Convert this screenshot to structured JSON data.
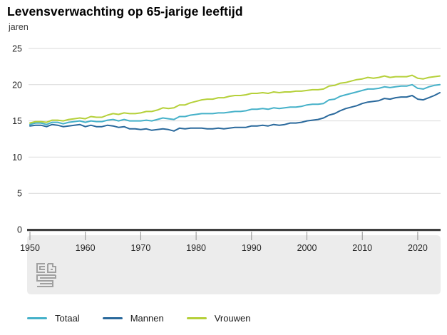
{
  "header": {
    "title": "Levensverwachting op 65-jarige leeftijd",
    "unit_label": "jaren"
  },
  "chart_data": {
    "type": "line",
    "title": "Levensverwachting op 65-jarige leeftijd",
    "ylabel": "jaren",
    "xlabel": "",
    "ylim": [
      0,
      25
    ],
    "y_ticks": [
      0,
      5,
      10,
      15,
      20,
      25
    ],
    "x_ticks": [
      1950,
      1960,
      1970,
      1980,
      1990,
      2000,
      2010,
      2020
    ],
    "x_range": [
      1950,
      2024
    ],
    "grid": "horizontal",
    "legend_position": "bottom",
    "axis_color": "#3f3f3f",
    "gridline_color": "#d9d9d9",
    "band_color": "#ececec",
    "years": [
      1950,
      1951,
      1952,
      1953,
      1954,
      1955,
      1956,
      1957,
      1958,
      1959,
      1960,
      1961,
      1962,
      1963,
      1964,
      1965,
      1966,
      1967,
      1968,
      1969,
      1970,
      1971,
      1972,
      1973,
      1974,
      1975,
      1976,
      1977,
      1978,
      1979,
      1980,
      1981,
      1982,
      1983,
      1984,
      1985,
      1986,
      1987,
      1988,
      1989,
      1990,
      1991,
      1992,
      1993,
      1994,
      1995,
      1996,
      1997,
      1998,
      1999,
      2000,
      2001,
      2002,
      2003,
      2004,
      2005,
      2006,
      2007,
      2008,
      2009,
      2010,
      2011,
      2012,
      2013,
      2014,
      2015,
      2016,
      2017,
      2018,
      2019,
      2020,
      2021,
      2022,
      2023,
      2024
    ],
    "series": [
      {
        "name": "Totaal",
        "color": "#45b1c9",
        "values": [
          14.5,
          14.7,
          14.7,
          14.5,
          14.8,
          14.8,
          14.6,
          14.8,
          14.9,
          15.0,
          14.8,
          15.0,
          14.9,
          14.9,
          15.1,
          15.2,
          15.0,
          15.2,
          15.0,
          15.0,
          15.0,
          15.1,
          15.0,
          15.2,
          15.4,
          15.3,
          15.2,
          15.6,
          15.6,
          15.8,
          15.9,
          16.0,
          16.0,
          16.0,
          16.1,
          16.1,
          16.2,
          16.3,
          16.3,
          16.4,
          16.6,
          16.6,
          16.7,
          16.6,
          16.8,
          16.7,
          16.8,
          16.9,
          16.9,
          17.0,
          17.2,
          17.3,
          17.3,
          17.4,
          17.9,
          18.0,
          18.4,
          18.6,
          18.8,
          19.0,
          19.2,
          19.4,
          19.4,
          19.5,
          19.7,
          19.6,
          19.7,
          19.8,
          19.8,
          20.0,
          19.5,
          19.4,
          19.7,
          19.9,
          20.0
        ]
      },
      {
        "name": "Mannen",
        "color": "#2a699c",
        "values": [
          14.3,
          14.4,
          14.4,
          14.2,
          14.5,
          14.4,
          14.2,
          14.3,
          14.4,
          14.5,
          14.2,
          14.4,
          14.2,
          14.2,
          14.4,
          14.3,
          14.1,
          14.2,
          13.9,
          13.9,
          13.8,
          13.9,
          13.7,
          13.8,
          13.9,
          13.8,
          13.6,
          14.0,
          13.9,
          14.0,
          14.0,
          14.0,
          13.9,
          13.9,
          14.0,
          13.9,
          14.0,
          14.1,
          14.1,
          14.1,
          14.3,
          14.3,
          14.4,
          14.3,
          14.5,
          14.4,
          14.5,
          14.7,
          14.7,
          14.8,
          15.0,
          15.1,
          15.2,
          15.4,
          15.8,
          16.0,
          16.4,
          16.7,
          16.9,
          17.1,
          17.4,
          17.6,
          17.7,
          17.8,
          18.1,
          18.0,
          18.2,
          18.3,
          18.3,
          18.5,
          18.0,
          17.9,
          18.2,
          18.5,
          18.9
        ]
      },
      {
        "name": "Vrouwen",
        "color": "#b5d039",
        "values": [
          14.7,
          14.9,
          14.9,
          14.8,
          15.1,
          15.1,
          15.0,
          15.2,
          15.3,
          15.4,
          15.3,
          15.6,
          15.5,
          15.5,
          15.8,
          16.0,
          15.9,
          16.1,
          16.0,
          16.0,
          16.1,
          16.3,
          16.3,
          16.5,
          16.8,
          16.7,
          16.8,
          17.2,
          17.2,
          17.5,
          17.7,
          17.9,
          18.0,
          18.0,
          18.2,
          18.2,
          18.4,
          18.5,
          18.5,
          18.6,
          18.8,
          18.8,
          18.9,
          18.8,
          19.0,
          18.9,
          19.0,
          19.0,
          19.1,
          19.1,
          19.2,
          19.3,
          19.3,
          19.4,
          19.8,
          19.9,
          20.2,
          20.3,
          20.5,
          20.7,
          20.8,
          21.0,
          20.9,
          21.0,
          21.2,
          21.0,
          21.1,
          21.1,
          21.1,
          21.3,
          20.9,
          20.8,
          21.0,
          21.1,
          21.2
        ]
      }
    ]
  },
  "legend": {
    "items": [
      {
        "label": "Totaal"
      },
      {
        "label": "Mannen"
      },
      {
        "label": "Vrouwen"
      }
    ]
  },
  "footer": {
    "logo_name": "cbs-logo"
  }
}
